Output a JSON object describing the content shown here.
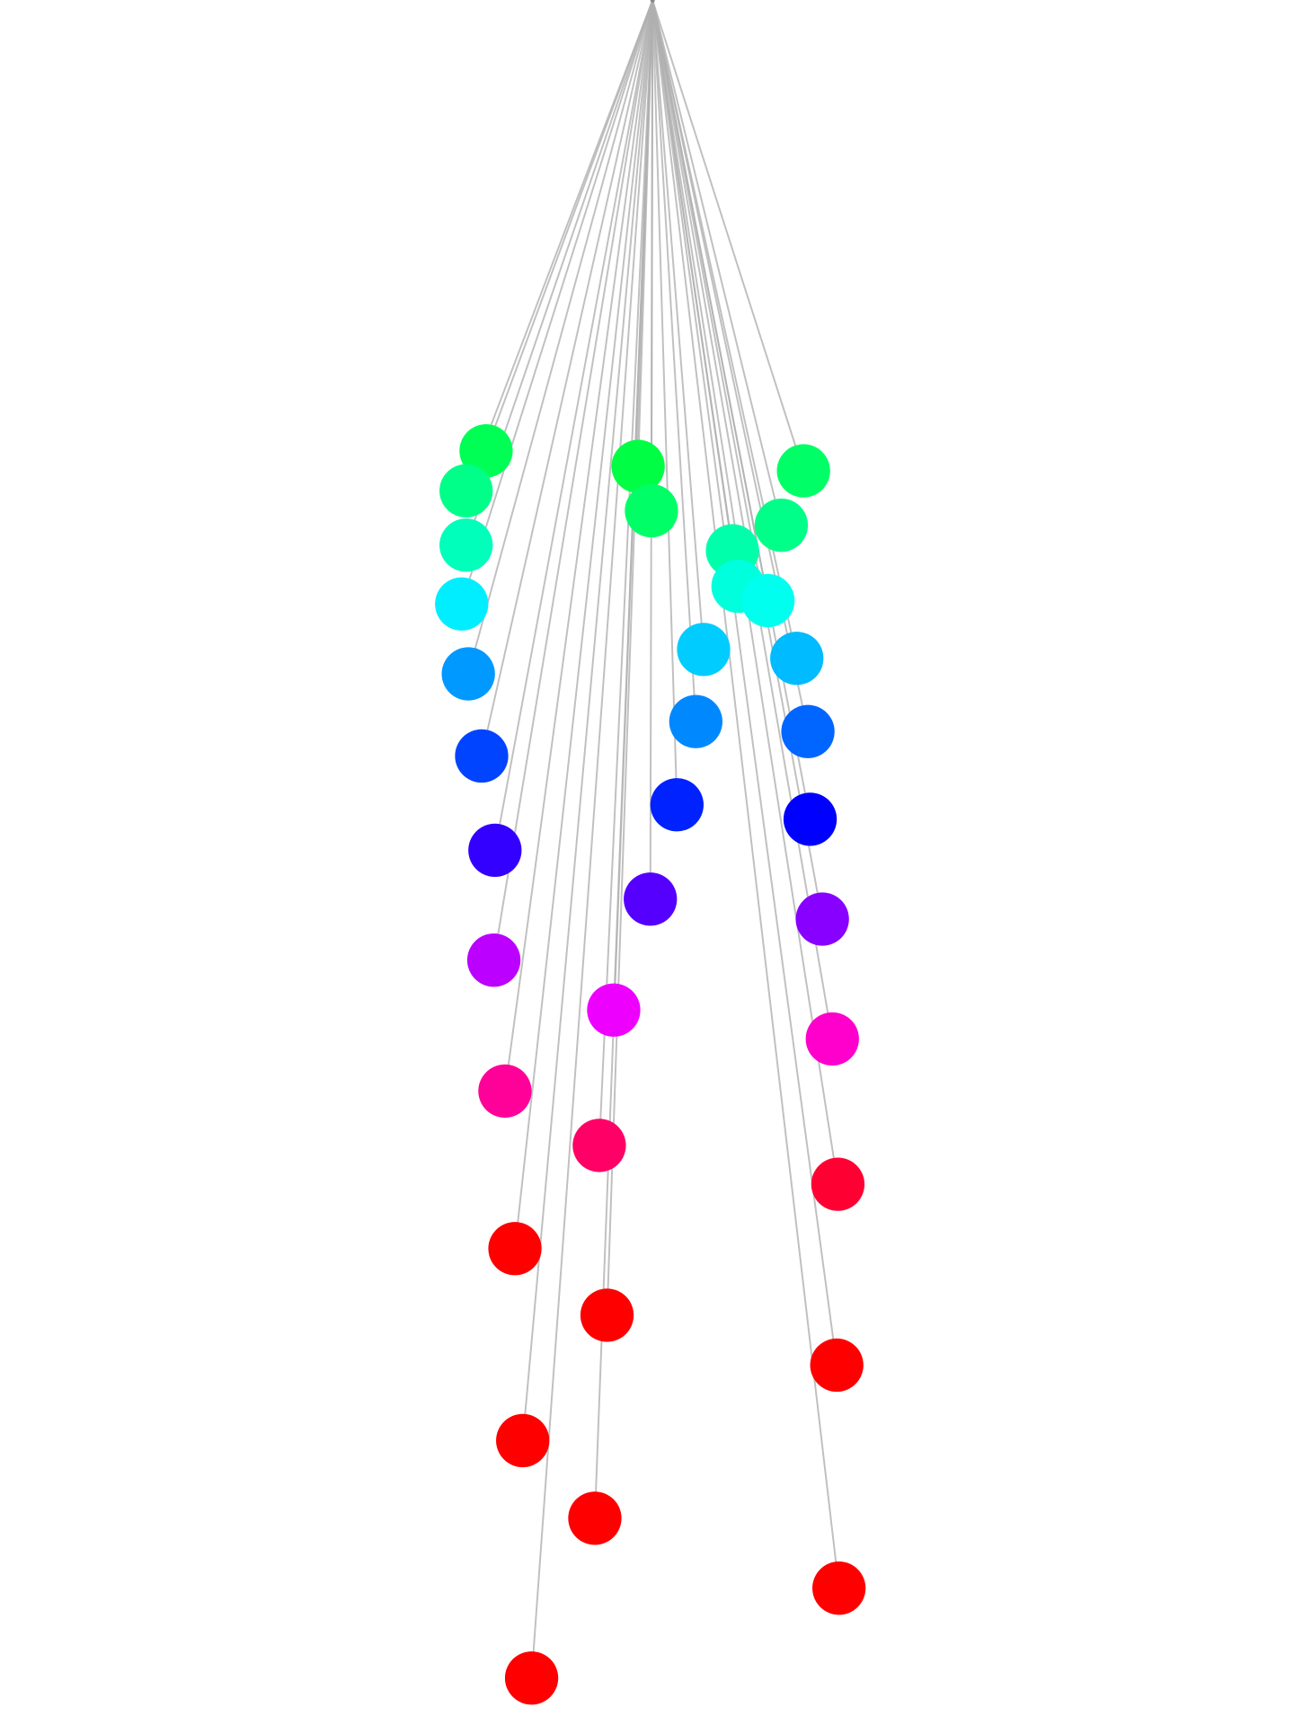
{
  "diagram": {
    "type": "fan-out tree",
    "edge_color": "#b0b0b0",
    "background": "#ffffff",
    "node_colors": [
      "#00ff55",
      "#00ff88",
      "#00ffbb",
      "#00eeff",
      "#0099ff",
      "#0044ff",
      "#3300ff",
      "#bb00ff",
      "#ff0099",
      "#ff0000",
      "#ff0000",
      "#ff0000",
      "#00ff44",
      "#00ff66",
      "#00ffaa",
      "#00ffdd",
      "#00ccff",
      "#0088ff",
      "#0022ff",
      "#5500ff",
      "#ee00ff",
      "#ff0066",
      "#ff0000",
      "#ff0000",
      "#00ff66",
      "#00ff88",
      "#00ffee",
      "#00bbff",
      "#0066ff",
      "#0000ff",
      "#8800ff",
      "#ff00cc",
      "#ff0033",
      "#ff0000",
      "#ff0000"
    ]
  }
}
